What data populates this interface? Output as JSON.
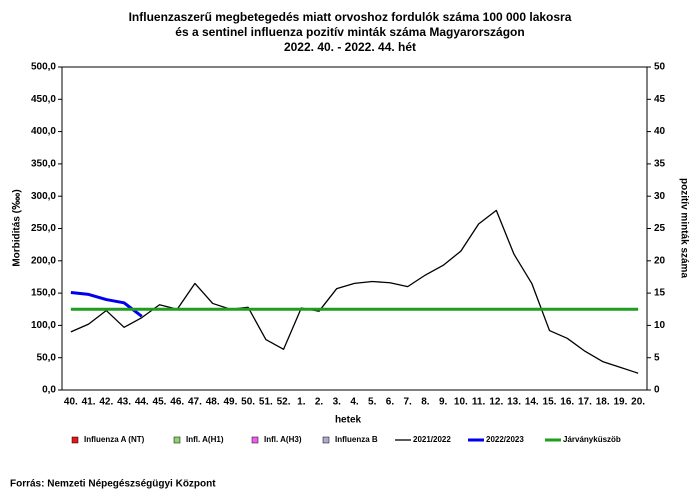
{
  "chart_data": {
    "type": "line",
    "title": [
      "Influenzaszerű megbetegedés miatt orvoshoz fordulók száma 100 000 lakosra",
      "és a sentinel influenza pozitív minták száma Magyarországon",
      "2022. 40. - 2022. 44. hét"
    ],
    "y_label": "Morbiditás (‱)",
    "y2_label": "pozitív minták száma",
    "x_label": "hetek",
    "source": "Forrás: Nemzeti Népegészségügyi Központ",
    "categories": [
      "40.",
      "41.",
      "42.",
      "43.",
      "44.",
      "45.",
      "46.",
      "47.",
      "48.",
      "49.",
      "50.",
      "51.",
      "52.",
      "1.",
      "2.",
      "3.",
      "4.",
      "5.",
      "6.",
      "7.",
      "8.",
      "9.",
      "10.",
      "11.",
      "12.",
      "13.",
      "14.",
      "15.",
      "16.",
      "17.",
      "18.",
      "19.",
      "20."
    ],
    "ylim": [
      0,
      500
    ],
    "yticks": [
      {
        "value": 0,
        "label": "0,0"
      },
      {
        "value": 50,
        "label": "50,0"
      },
      {
        "value": 100,
        "label": "100,0"
      },
      {
        "value": 150,
        "label": "150,0"
      },
      {
        "value": 200,
        "label": "200,0"
      },
      {
        "value": 250,
        "label": "250,0"
      },
      {
        "value": 300,
        "label": "300,0"
      },
      {
        "value": 350,
        "label": "350,0"
      },
      {
        "value": 400,
        "label": "400,0"
      },
      {
        "value": 450,
        "label": "450,0"
      },
      {
        "value": 500,
        "label": "500,0"
      }
    ],
    "y2lim": [
      0,
      50
    ],
    "y2ticks": [
      0,
      5,
      10,
      15,
      20,
      25,
      30,
      35,
      40,
      45,
      50
    ],
    "grid": false,
    "legend": "bottom",
    "series": [
      {
        "name": "Influenza A (NT)",
        "color": "#e8141b",
        "type": "bar",
        "axis": "y2",
        "values": [
          null,
          null,
          null,
          null,
          null,
          null,
          null,
          null,
          null,
          null,
          null,
          null,
          null,
          null,
          null,
          null,
          null,
          null,
          null,
          null,
          null,
          null,
          null,
          null,
          null,
          null,
          null,
          null,
          null,
          null,
          null,
          null,
          null
        ]
      },
      {
        "name": "Infl. A(H1)",
        "color": "#8fd36a",
        "type": "bar",
        "axis": "y2",
        "values": [
          null,
          null,
          null,
          null,
          null,
          null,
          null,
          null,
          null,
          null,
          null,
          null,
          null,
          null,
          null,
          null,
          null,
          null,
          null,
          null,
          null,
          null,
          null,
          null,
          null,
          null,
          null,
          null,
          null,
          null,
          null,
          null,
          null
        ]
      },
      {
        "name": "Infl. A(H3)",
        "color": "#f05cf0",
        "type": "bar",
        "axis": "y2",
        "values": [
          null,
          null,
          null,
          null,
          null,
          null,
          null,
          null,
          null,
          null,
          null,
          null,
          null,
          null,
          null,
          null,
          null,
          null,
          null,
          null,
          null,
          null,
          null,
          null,
          null,
          null,
          null,
          null,
          null,
          null,
          null,
          null,
          null
        ]
      },
      {
        "name": "Influenza B",
        "color": "#b4a8d0",
        "type": "bar",
        "axis": "y2",
        "values": [
          null,
          null,
          null,
          null,
          null,
          null,
          null,
          null,
          null,
          null,
          null,
          null,
          null,
          null,
          null,
          null,
          null,
          null,
          null,
          null,
          null,
          null,
          null,
          null,
          null,
          null,
          null,
          null,
          null,
          null,
          null,
          null,
          null
        ]
      },
      {
        "name": "2021/2022",
        "color": "#000000",
        "type": "line",
        "width": 1.3,
        "values": [
          90,
          102,
          123,
          97,
          112,
          132,
          125,
          165,
          134,
          125,
          128,
          78,
          63,
          127,
          122,
          157,
          165,
          168,
          166,
          160,
          178,
          193,
          215,
          257,
          278,
          210,
          165,
          92,
          80,
          60,
          44,
          35,
          26
        ]
      },
      {
        "name": "2022/2023",
        "color": "#0000ee",
        "type": "line",
        "width": 3,
        "values": [
          151,
          148,
          140,
          135,
          114,
          null,
          null,
          null,
          null,
          null,
          null,
          null,
          null,
          null,
          null,
          null,
          null,
          null,
          null,
          null,
          null,
          null,
          null,
          null,
          null,
          null,
          null,
          null,
          null,
          null,
          null,
          null,
          null
        ]
      },
      {
        "name": "Járványküszöb",
        "color": "#1e9e1e",
        "type": "line",
        "width": 3,
        "values": [
          125,
          125,
          125,
          125,
          125,
          125,
          125,
          125,
          125,
          125,
          125,
          125,
          125,
          125,
          125,
          125,
          125,
          125,
          125,
          125,
          125,
          125,
          125,
          125,
          125,
          125,
          125,
          125,
          125,
          125,
          125,
          125,
          125
        ]
      }
    ]
  }
}
